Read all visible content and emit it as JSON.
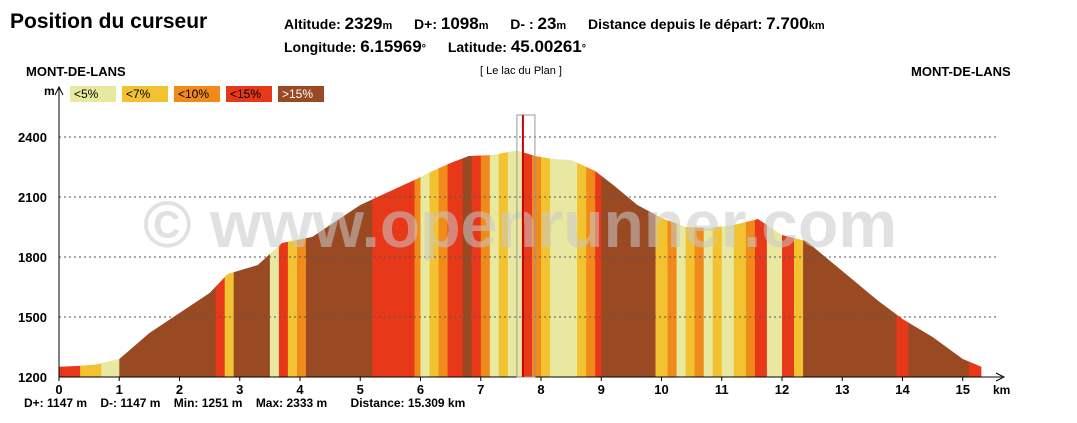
{
  "header": {
    "title": "Position du curseur",
    "altitude_label": "Altitude:",
    "altitude_value": "2329",
    "altitude_unit": "m",
    "dplus_label": "D+:",
    "dplus_value": "1098",
    "dplus_unit": "m",
    "dminus_label": "D- :",
    "dminus_value": "23",
    "dminus_unit": "m",
    "distance_label": "Distance depuis le départ:",
    "distance_value": "7.700",
    "distance_unit": "km",
    "longitude_label": "Longitude:",
    "longitude_value": "6.15969",
    "longitude_unit": "°",
    "latitude_label": "Latitude:",
    "latitude_value": "45.00261",
    "latitude_unit": "°"
  },
  "start_label": "MONT-DE-LANS",
  "end_label": "MONT-DE-LANS",
  "place_label": "[ Le lac du Plan ]",
  "legend": [
    {
      "label": "<5%",
      "color": "#e8e8a0"
    },
    {
      "label": "<7%",
      "color": "#f2c230"
    },
    {
      "label": "<10%",
      "color": "#f08a1a"
    },
    {
      "label": "<15%",
      "color": "#e8381a"
    },
    {
      "label": ">15%",
      "color": "#9a4a22"
    }
  ],
  "watermark": "© www.openrunner.com",
  "chart_data": {
    "type": "area",
    "ylabel": "m",
    "xlabel": "km",
    "xlim": [
      0,
      15.309
    ],
    "ylim": [
      1200,
      2500
    ],
    "yticks": [
      1200,
      1500,
      1800,
      2100,
      2400
    ],
    "xticks": [
      0,
      1,
      2,
      3,
      4,
      5,
      6,
      7,
      8,
      9,
      10,
      11,
      12,
      13,
      14,
      15
    ],
    "grid": true,
    "cursor_x": 7.7,
    "profile": [
      [
        0,
        1251
      ],
      [
        0.3,
        1255
      ],
      [
        0.6,
        1262
      ],
      [
        1.0,
        1290
      ],
      [
        1.5,
        1420
      ],
      [
        2.0,
        1520
      ],
      [
        2.5,
        1620
      ],
      [
        2.8,
        1715
      ],
      [
        3.3,
        1760
      ],
      [
        3.7,
        1870
      ],
      [
        4.2,
        1900
      ],
      [
        4.6,
        1980
      ],
      [
        5.0,
        2060
      ],
      [
        5.5,
        2130
      ],
      [
        5.9,
        2185
      ],
      [
        6.2,
        2230
      ],
      [
        6.5,
        2270
      ],
      [
        6.8,
        2305
      ],
      [
        7.2,
        2310
      ],
      [
        7.6,
        2333
      ],
      [
        7.9,
        2305
      ],
      [
        8.2,
        2290
      ],
      [
        8.5,
        2285
      ],
      [
        8.9,
        2230
      ],
      [
        9.2,
        2160
      ],
      [
        9.6,
        2060
      ],
      [
        10.0,
        1995
      ],
      [
        10.4,
        1950
      ],
      [
        10.8,
        1945
      ],
      [
        11.2,
        1960
      ],
      [
        11.6,
        1990
      ],
      [
        12.0,
        1910
      ],
      [
        12.4,
        1880
      ],
      [
        12.8,
        1780
      ],
      [
        13.2,
        1680
      ],
      [
        13.6,
        1580
      ],
      [
        14.0,
        1490
      ],
      [
        14.5,
        1400
      ],
      [
        15.0,
        1290
      ],
      [
        15.309,
        1251
      ]
    ],
    "slope_bands": [
      [
        0.0,
        0.35,
        4
      ],
      [
        0.35,
        0.7,
        2
      ],
      [
        0.7,
        1.0,
        1
      ],
      [
        1.0,
        2.6,
        5
      ],
      [
        2.6,
        2.75,
        4
      ],
      [
        2.75,
        2.9,
        2
      ],
      [
        2.9,
        3.5,
        5
      ],
      [
        3.5,
        3.65,
        1
      ],
      [
        3.65,
        3.8,
        4
      ],
      [
        3.8,
        3.95,
        2
      ],
      [
        3.95,
        4.1,
        3
      ],
      [
        4.1,
        5.2,
        5
      ],
      [
        5.2,
        5.9,
        4
      ],
      [
        5.9,
        6.0,
        3
      ],
      [
        6.0,
        6.15,
        1
      ],
      [
        6.15,
        6.3,
        2
      ],
      [
        6.3,
        6.45,
        3
      ],
      [
        6.45,
        6.7,
        4
      ],
      [
        6.7,
        6.85,
        5
      ],
      [
        6.85,
        7.0,
        4
      ],
      [
        7.0,
        7.15,
        3
      ],
      [
        7.15,
        7.3,
        1
      ],
      [
        7.3,
        7.45,
        2
      ],
      [
        7.45,
        7.7,
        1
      ],
      [
        7.7,
        7.85,
        4
      ],
      [
        7.85,
        8.0,
        3
      ],
      [
        8.0,
        8.15,
        2
      ],
      [
        8.15,
        8.6,
        1
      ],
      [
        8.6,
        8.75,
        2
      ],
      [
        8.75,
        8.9,
        3
      ],
      [
        8.9,
        9.0,
        4
      ],
      [
        9.0,
        9.9,
        5
      ],
      [
        9.9,
        10.1,
        2
      ],
      [
        10.1,
        10.25,
        3
      ],
      [
        10.25,
        10.4,
        1
      ],
      [
        10.4,
        10.55,
        2
      ],
      [
        10.55,
        10.7,
        3
      ],
      [
        10.7,
        10.85,
        1
      ],
      [
        10.85,
        11.0,
        2
      ],
      [
        11.0,
        11.2,
        1
      ],
      [
        11.2,
        11.4,
        2
      ],
      [
        11.4,
        11.55,
        3
      ],
      [
        11.55,
        11.75,
        4
      ],
      [
        11.75,
        12.0,
        1
      ],
      [
        12.0,
        12.2,
        4
      ],
      [
        12.2,
        12.35,
        2
      ],
      [
        12.35,
        13.9,
        5
      ],
      [
        13.9,
        14.1,
        4
      ],
      [
        14.1,
        15.1,
        5
      ],
      [
        15.1,
        15.309,
        4
      ]
    ]
  },
  "footer": {
    "dplus": "D+: 1147 m",
    "dminus": "D-: 1147 m",
    "min": "Min: 1251 m",
    "max": "Max: 2333 m",
    "distance": "Distance: 15.309 km"
  }
}
